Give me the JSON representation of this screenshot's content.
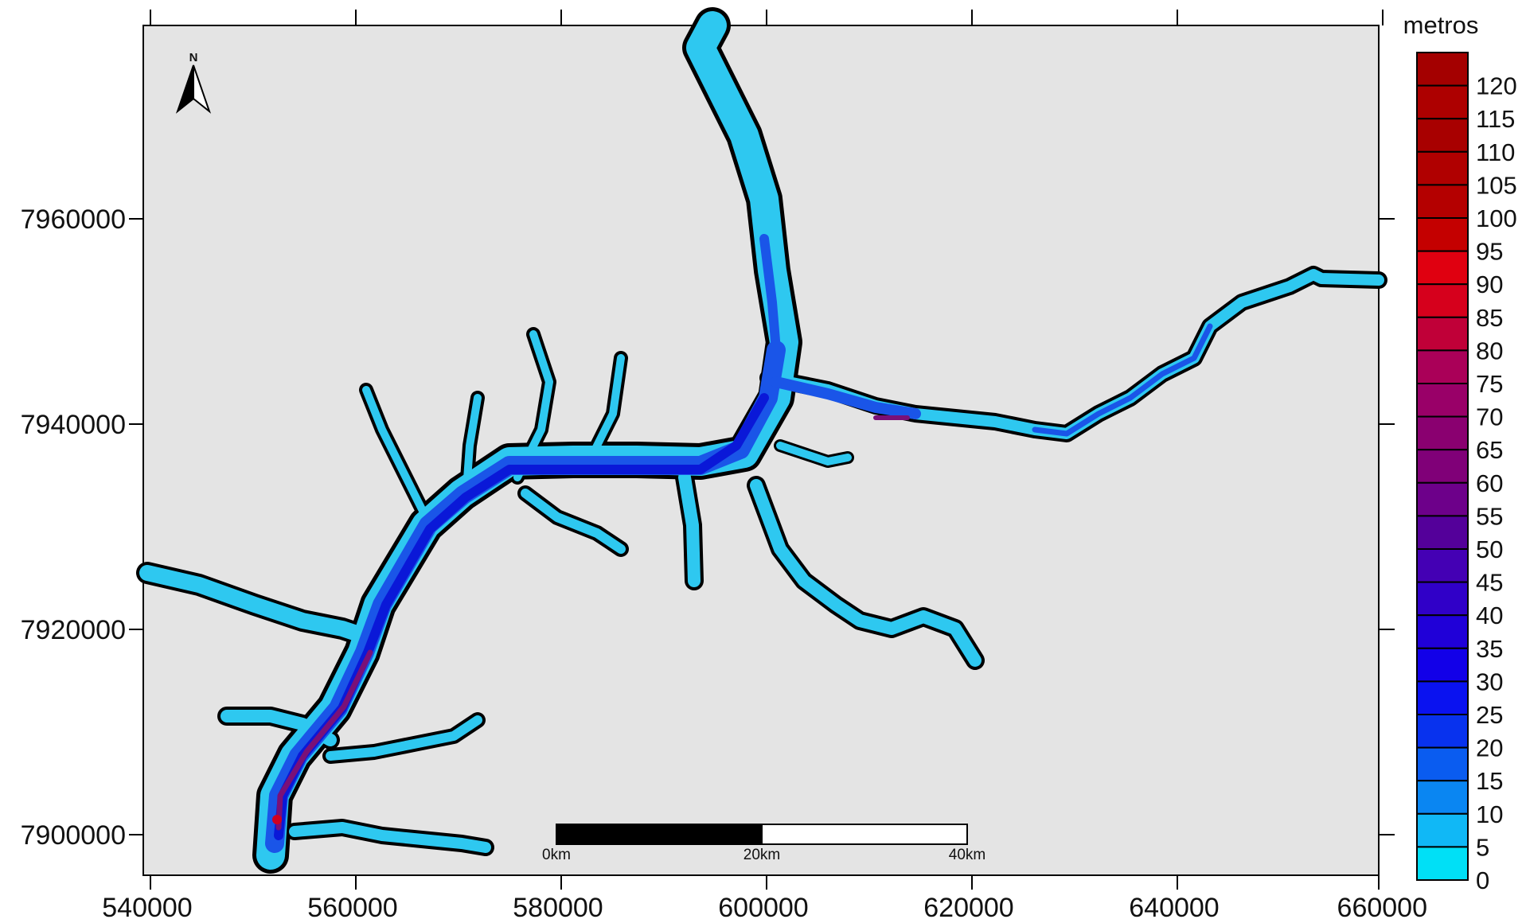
{
  "map": {
    "north_label": "N",
    "background_color": "#e4e4e4",
    "x_ticks": [
      "540000",
      "560000",
      "580000",
      "600000",
      "620000",
      "640000",
      "660000"
    ],
    "y_ticks": [
      "7960000",
      "7940000",
      "7920000",
      "7900000"
    ],
    "x_range": [
      540000,
      660000
    ],
    "y_range": [
      7893000,
      7979000
    ]
  },
  "scale_bar": {
    "labels": [
      "0km",
      "20km",
      "40km"
    ]
  },
  "legend": {
    "title": "metros",
    "labels": [
      "120",
      "115",
      "110",
      "105",
      "100",
      "95",
      "90",
      "85",
      "80",
      "75",
      "70",
      "65",
      "60",
      "55",
      "50",
      "45",
      "40",
      "35",
      "30",
      "25",
      "20",
      "15",
      "10",
      "5",
      "0"
    ],
    "colors": [
      "#a40000",
      "#ad0000",
      "#a80000",
      "#b00000",
      "#b40000",
      "#c40000",
      "#e00010",
      "#d6001c",
      "#c00038",
      "#aa0058",
      "#990068",
      "#8a0070",
      "#800078",
      "#6d008a",
      "#54009a",
      "#4400b4",
      "#3000c8",
      "#2000d8",
      "#1200e8",
      "#0a12f0",
      "#0832ee",
      "#0a5cf0",
      "#0a86f2",
      "#10b8f6",
      "#00e0f6"
    ]
  },
  "colors": {
    "shallow": "#2ec8f0",
    "medium": "#1a55e8",
    "deep": "#0a18d8",
    "deepest": "#7a1078"
  }
}
